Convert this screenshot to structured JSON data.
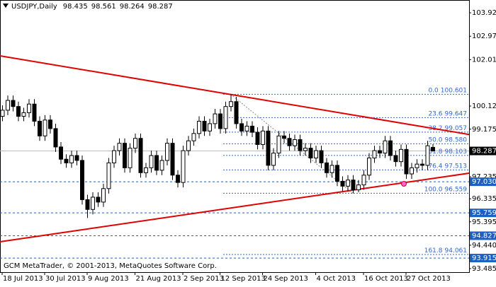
{
  "chart_data": {
    "type": "candlestick",
    "symbol": "USDJPY,Daily",
    "watermark": "GCM MetaTrader, © 2001-2013, MetaQuotes Software Corp.",
    "categories": [
      "18 Jul 2013",
      null,
      null,
      null,
      null,
      null,
      null,
      null,
      "30 Jul 2013",
      null,
      null,
      null,
      null,
      null,
      null,
      null,
      "9 Aug 2013",
      null,
      null,
      null,
      null,
      null,
      null,
      null,
      null,
      "21 Aug 2013",
      null,
      null,
      null,
      null,
      null,
      null,
      null,
      null,
      "2 Sep 2013",
      null,
      null,
      null,
      null,
      null,
      null,
      "12 Sep 2013",
      null,
      null,
      null,
      null,
      null,
      null,
      null,
      "24 Sep 2013",
      null,
      null,
      null,
      null,
      null,
      null,
      null,
      null,
      null,
      "4 Oct 2013",
      null,
      null,
      null,
      null,
      null,
      null,
      null,
      null,
      "16 Oct 2013",
      null,
      null,
      null,
      null,
      null,
      null,
      null,
      "27 Oct 2013",
      null,
      null,
      null,
      null,
      null
    ],
    "open": [
      99.7,
      99.95,
      100.35,
      100.1,
      99.7,
      99.85,
      100.2,
      99.5,
      98.9,
      99.55,
      99.2,
      98.45,
      97.95,
      97.8,
      98.1,
      97.9,
      96.3,
      95.9,
      96.4,
      96.2,
      96.75,
      97.8,
      98.3,
      98.6,
      97.6,
      98.4,
      98.8,
      97.4,
      97.6,
      98.1,
      97.5,
      97.9,
      98.6,
      97.3,
      97.0,
      98.3,
      98.7,
      99.0,
      99.5,
      99.1,
      99.4,
      99.8,
      99.2,
      100.1,
      100.3,
      99.4,
      99.1,
      99.3,
      99.05,
      98.55,
      99.1,
      97.7,
      98.2,
      98.9,
      98.8,
      98.5,
      98.75,
      98.3,
      98.4,
      98.0,
      98.3,
      97.8,
      97.4,
      97.7,
      97.05,
      96.85,
      97.1,
      96.7,
      96.9,
      97.3,
      98.0,
      98.3,
      98.2,
      98.7,
      98.1,
      97.85,
      98.35,
      97.35,
      97.6,
      97.75,
      97.7,
      98.435
    ],
    "high": [
      100.15,
      100.55,
      100.55,
      100.3,
      100.05,
      100.4,
      100.4,
      99.7,
      99.75,
      99.75,
      99.4,
      98.65,
      98.15,
      98.3,
      98.3,
      98.1,
      96.5,
      96.6,
      96.6,
      96.95,
      98.0,
      98.5,
      98.8,
      98.8,
      98.6,
      99.0,
      99.0,
      97.8,
      98.3,
      98.3,
      98.1,
      98.8,
      98.8,
      97.5,
      98.5,
      98.9,
      99.2,
      99.7,
      99.7,
      99.6,
      100.0,
      100.0,
      100.3,
      100.601,
      100.5,
      99.6,
      99.5,
      99.5,
      99.25,
      99.3,
      99.3,
      98.4,
      99.1,
      99.1,
      99.0,
      98.95,
      98.95,
      98.6,
      98.6,
      98.5,
      98.5,
      98.0,
      97.9,
      97.9,
      97.25,
      97.3,
      97.3,
      97.1,
      97.5,
      98.2,
      98.5,
      98.5,
      98.9,
      98.9,
      98.3,
      98.55,
      98.55,
      97.8,
      97.95,
      97.95,
      98.7,
      98.561
    ],
    "low": [
      99.5,
      99.75,
      99.9,
      99.5,
      99.5,
      99.65,
      99.3,
      98.7,
      98.7,
      99.0,
      98.25,
      97.75,
      97.6,
      97.6,
      97.7,
      96.1,
      95.55,
      95.7,
      96.0,
      96.0,
      96.55,
      97.6,
      98.1,
      97.4,
      97.4,
      98.2,
      97.2,
      97.2,
      97.4,
      97.3,
      97.3,
      97.7,
      97.1,
      96.8,
      96.8,
      98.1,
      98.5,
      98.8,
      98.9,
      98.9,
      99.2,
      99.0,
      99.0,
      99.9,
      99.2,
      98.9,
      98.9,
      98.85,
      98.35,
      98.35,
      97.5,
      97.5,
      98.0,
      98.6,
      98.3,
      98.3,
      98.1,
      98.1,
      97.8,
      97.8,
      97.6,
      97.2,
      97.2,
      96.85,
      96.65,
      96.65,
      96.559,
      96.6,
      96.7,
      97.1,
      97.8,
      98.0,
      98.0,
      97.9,
      97.65,
      97.65,
      97.15,
      97.15,
      97.4,
      97.5,
      97.5,
      98.264
    ],
    "close": [
      99.95,
      100.35,
      100.1,
      99.7,
      99.85,
      100.2,
      99.5,
      98.9,
      99.55,
      99.2,
      98.45,
      97.95,
      97.8,
      98.1,
      97.9,
      96.3,
      95.9,
      96.4,
      96.2,
      96.75,
      97.8,
      98.3,
      98.6,
      97.6,
      98.4,
      98.8,
      97.4,
      97.6,
      98.1,
      97.5,
      97.9,
      98.6,
      97.3,
      97.0,
      98.3,
      98.7,
      99.0,
      99.5,
      99.1,
      99.4,
      99.8,
      99.2,
      100.1,
      100.3,
      99.4,
      99.1,
      99.3,
      99.05,
      98.55,
      99.1,
      97.7,
      98.2,
      98.9,
      98.8,
      98.5,
      98.75,
      98.3,
      98.4,
      98.0,
      98.3,
      97.8,
      97.4,
      97.7,
      97.05,
      96.85,
      97.1,
      96.7,
      96.9,
      97.3,
      98.0,
      98.3,
      98.2,
      98.7,
      98.1,
      97.85,
      98.35,
      97.35,
      97.6,
      97.75,
      97.7,
      98.5,
      98.287
    ],
    "ylim": [
      93.34,
      104.39
    ],
    "yticks": [
      103.925,
      {
        "value": 102.97,
        "label": "102.970"
      },
      102.015,
      {
        "value": 100.12,
        "label": "100.120"
      },
      99.175,
      97.235,
      96.335,
      95.395,
      {
        "value": 94.44,
        "label": "94.440"
      },
      93.485
    ],
    "levels": [
      {
        "value": 97.03,
        "label": "97.030"
      },
      95.759,
      94.827,
      93.915
    ],
    "fibonacci": [
      {
        "level": "0.0",
        "value": 100.601
      },
      {
        "level": "23.6",
        "value": 99.647
      },
      {
        "level": "38.2",
        "value": 99.057
      },
      {
        "level": "50.0",
        "value": 98.58,
        "label": "98.580"
      },
      {
        "level": "61.8",
        "value": 98.103
      },
      {
        "level": "76.4",
        "value": 97.513
      },
      {
        "level": "100.0",
        "value": 96.559
      },
      {
        "level": "161.8",
        "value": 94.061
      }
    ],
    "trendlines": [
      {
        "color": "#e00000",
        "start": 102.17,
        "end": 98.96
      },
      {
        "color": "#e00000",
        "start": 94.58,
        "end": 97.38
      }
    ],
    "bull_color": "#ffffff",
    "bear_color": "#000000",
    "level_color": "#1f5fbf",
    "fib_color": "#3366cc"
  }
}
